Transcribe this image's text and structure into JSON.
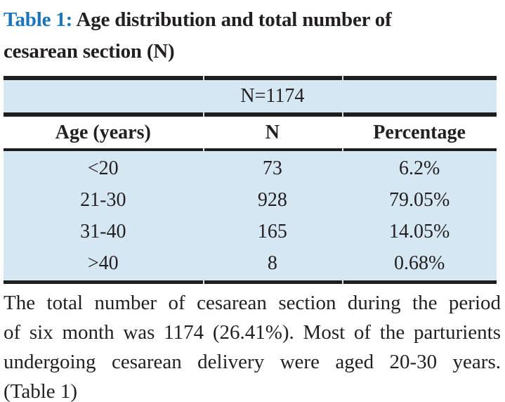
{
  "title": {
    "label": "Table 1:",
    "line1": "Age distribution and total number of",
    "line2": "cesarean section (N)"
  },
  "table": {
    "total_label": "N=1174",
    "columns": [
      "Age (years)",
      "N",
      "Percentage"
    ],
    "rows": [
      {
        "age": "<20",
        "n": "73",
        "percentage": "6.2%"
      },
      {
        "age": "21-30",
        "n": "928",
        "percentage": "79.05%"
      },
      {
        "age": "31-40",
        "n": "165",
        "percentage": "14.05%"
      },
      {
        "age": ">40",
        "n": "8",
        "percentage": "0.68%"
      }
    ]
  },
  "caption": {
    "lines": [
      "The total number of cesarean section during the period",
      "of six month was 1174 (26.41%). Most of the parturients",
      "undergoing cesarean delivery were aged 20-30 years.",
      "(Table 1)"
    ]
  },
  "colors": {
    "accent_blue": "#1B75BC",
    "table_fill": "#D6E7F4",
    "rule": "#1E1E1E",
    "text": "#231F20"
  }
}
